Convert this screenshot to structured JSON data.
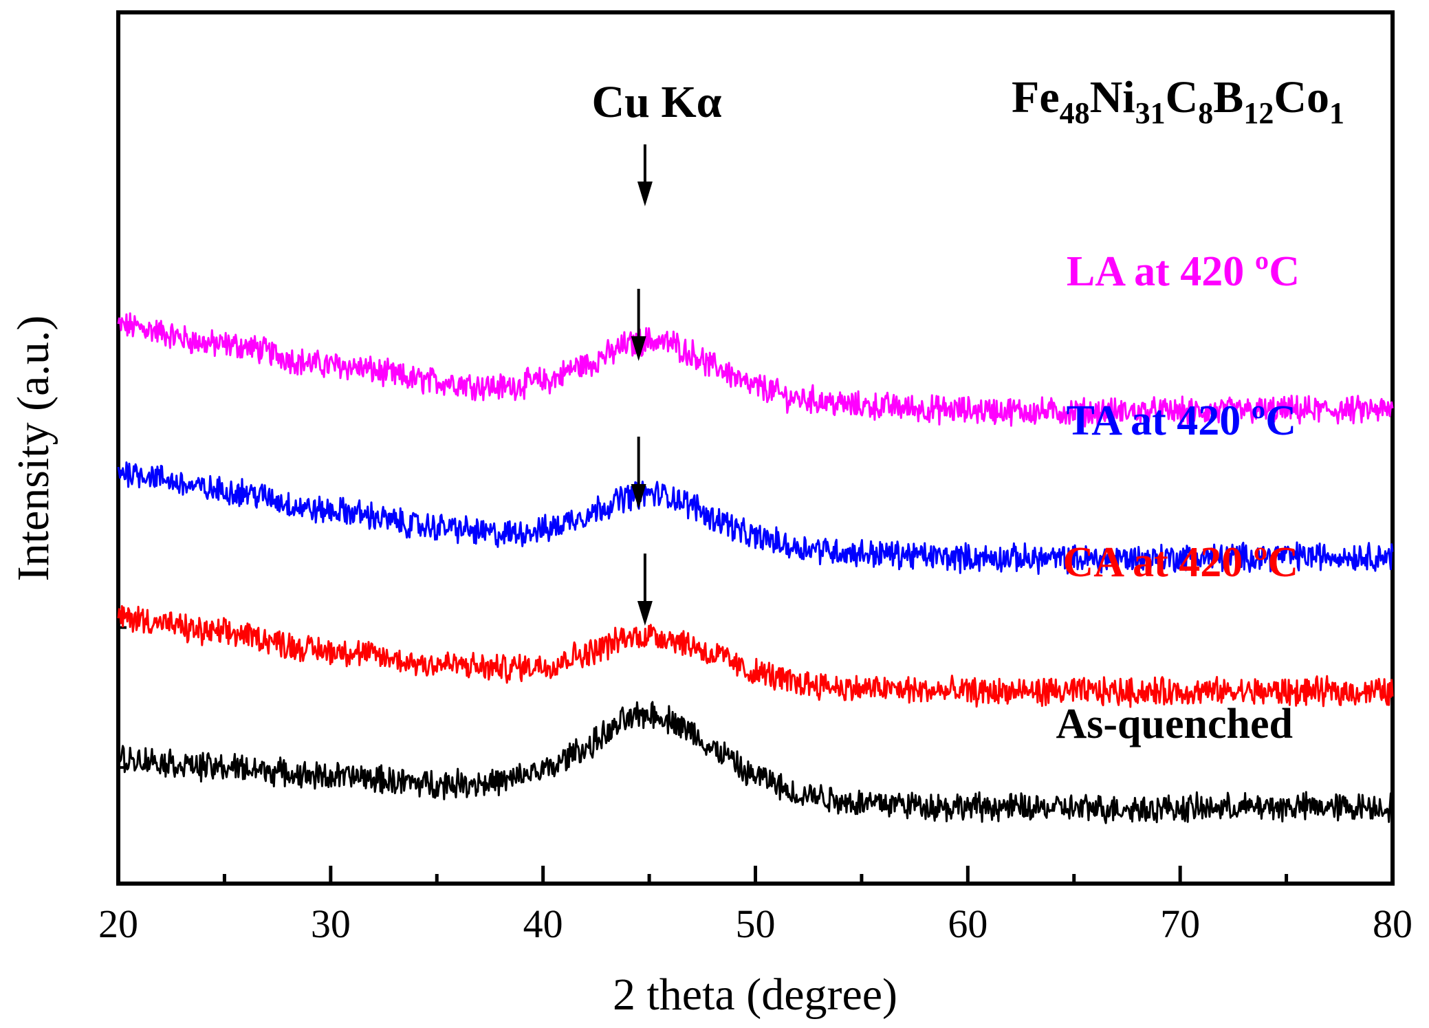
{
  "chart_data": {
    "type": "line",
    "title": "",
    "xlabel": "2 theta (degree)",
    "ylabel": "Intensity (a.u.)",
    "xlim": [
      20,
      80
    ],
    "xticks": [
      20,
      30,
      40,
      50,
      60,
      70,
      80
    ],
    "xtick_labels": [
      "20",
      "30",
      "40",
      "50",
      "60",
      "70",
      "80"
    ],
    "yticks_shown": false,
    "grid": false,
    "annotation": {
      "text": "Cu Kα",
      "arrow_x": [
        44.8,
        44.5,
        44.5,
        44.8
      ]
    },
    "formula": {
      "parts": [
        {
          "el": "Fe",
          "sub": "48"
        },
        {
          "el": "Ni",
          "sub": "31"
        },
        {
          "el": "C",
          "sub": "8"
        },
        {
          "el": "B",
          "sub": "12"
        },
        {
          "el": "Co",
          "sub": "1"
        }
      ]
    },
    "series": [
      {
        "name": "LA at 420 ºC",
        "color": "#ff00ff",
        "offset": 3,
        "x": [
          20,
          25,
          30,
          35,
          38,
          40,
          42,
          43,
          44,
          45,
          46,
          47,
          48,
          50,
          52,
          55,
          60,
          65,
          70,
          75,
          80
        ],
        "values": [
          3.85,
          3.72,
          3.58,
          3.47,
          3.43,
          3.47,
          3.58,
          3.65,
          3.72,
          3.75,
          3.73,
          3.66,
          3.57,
          3.43,
          3.35,
          3.3,
          3.27,
          3.26,
          3.26,
          3.27,
          3.27
        ]
      },
      {
        "name": "TA at 420 ºC",
        "color": "#0000ff",
        "offset": 2,
        "x": [
          20,
          25,
          30,
          35,
          38,
          40,
          42,
          43,
          44,
          45,
          46,
          47,
          48,
          50,
          52,
          55,
          60,
          65,
          70,
          75,
          80
        ],
        "values": [
          2.85,
          2.72,
          2.58,
          2.47,
          2.42,
          2.45,
          2.55,
          2.62,
          2.68,
          2.7,
          2.68,
          2.62,
          2.53,
          2.4,
          2.33,
          2.29,
          2.26,
          2.25,
          2.26,
          2.27,
          2.27
        ]
      },
      {
        "name": "CA at 420 ºC",
        "color": "#ff0000",
        "offset": 1,
        "x": [
          20,
          25,
          30,
          35,
          38,
          40,
          42,
          43,
          44,
          45,
          46,
          47,
          48,
          50,
          52,
          55,
          60,
          65,
          70,
          75,
          80
        ],
        "values": [
          1.85,
          1.74,
          1.62,
          1.53,
          1.5,
          1.52,
          1.6,
          1.66,
          1.71,
          1.73,
          1.71,
          1.66,
          1.59,
          1.47,
          1.4,
          1.36,
          1.34,
          1.34,
          1.34,
          1.34,
          1.34
        ]
      },
      {
        "name": "As-quenched",
        "color": "#000000",
        "offset": 0,
        "x": [
          20,
          25,
          30,
          35,
          38,
          40,
          42,
          43,
          44,
          45,
          46,
          47,
          48,
          50,
          52,
          55,
          60,
          65,
          70,
          75,
          80
        ],
        "values": [
          0.88,
          0.82,
          0.76,
          0.71,
          0.72,
          0.8,
          0.95,
          1.05,
          1.15,
          1.19,
          1.15,
          1.06,
          0.94,
          0.76,
          0.64,
          0.58,
          0.55,
          0.54,
          0.54,
          0.55,
          0.55
        ]
      }
    ]
  }
}
